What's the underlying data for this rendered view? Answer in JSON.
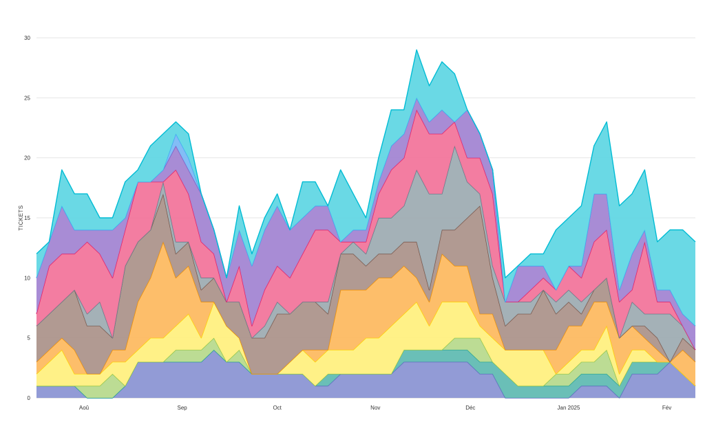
{
  "chart_data": {
    "type": "area",
    "stacked": true,
    "title": "",
    "xlabel": "",
    "ylabel": "TICKETS",
    "ylim": [
      0,
      30
    ],
    "yticks": [
      0,
      5,
      10,
      15,
      20,
      25,
      30
    ],
    "grid": true,
    "x_start": "2024-07-17",
    "x_end": "2025-02-10",
    "x_step_days": 4,
    "xticks": [
      {
        "label": "Aoû",
        "date": "2024-08-01"
      },
      {
        "label": "Sep",
        "date": "2024-09-01"
      },
      {
        "label": "Oct",
        "date": "2024-10-01"
      },
      {
        "label": "Nov",
        "date": "2024-11-01"
      },
      {
        "label": "Déc",
        "date": "2024-12-01"
      },
      {
        "label": "Jan 2025",
        "date": "2025-01-01"
      },
      {
        "label": "Fév",
        "date": "2025-02-01"
      }
    ],
    "series": [
      {
        "fill": "#8c96d4",
        "stroke": "#5c6bc0",
        "values": [
          1,
          1,
          1,
          1,
          0,
          0,
          0,
          1,
          3,
          3,
          3,
          3,
          3,
          3,
          4,
          3,
          3,
          2,
          2,
          2,
          2,
          2,
          1,
          1,
          2,
          2,
          2,
          2,
          2,
          3,
          3,
          3,
          3,
          3,
          3,
          2,
          2,
          0,
          0,
          0,
          0,
          0,
          0,
          1,
          1,
          1,
          0,
          2,
          2,
          2,
          3,
          2,
          1
        ]
      },
      {
        "fill": "#62bcb3",
        "stroke": "#1fa396",
        "values": [
          0,
          0,
          0,
          0,
          0,
          0,
          0,
          0,
          0,
          0,
          0,
          0,
          0,
          0,
          0,
          0,
          0,
          0,
          0,
          0,
          0,
          0,
          0,
          1,
          0,
          0,
          0,
          0,
          0,
          1,
          1,
          1,
          1,
          1,
          1,
          1,
          1,
          2,
          1,
          1,
          1,
          1,
          1,
          1,
          1,
          1,
          1,
          1,
          1,
          1,
          0,
          0,
          0
        ]
      },
      {
        "fill": "#b8da8e",
        "stroke": "#8bc34a",
        "values": [
          0,
          0,
          0,
          0,
          1,
          1,
          2,
          0,
          0,
          0,
          0,
          1,
          1,
          1,
          1,
          0,
          1,
          0,
          0,
          0,
          0,
          0,
          0,
          0,
          0,
          0,
          0,
          0,
          0,
          0,
          0,
          0,
          0,
          1,
          1,
          2,
          0,
          0,
          0,
          0,
          0,
          1,
          1,
          1,
          1,
          2,
          0,
          0,
          0,
          0,
          0,
          0,
          0
        ]
      },
      {
        "fill": "#fff081",
        "stroke": "#ffd600",
        "values": [
          1,
          2,
          3,
          1,
          1,
          1,
          1,
          2,
          1,
          2,
          2,
          2,
          3,
          1,
          3,
          3,
          1,
          0,
          0,
          0,
          1,
          2,
          2,
          2,
          2,
          2,
          3,
          3,
          4,
          3,
          4,
          2,
          4,
          3,
          3,
          1,
          2,
          2,
          3,
          3,
          3,
          0,
          1,
          1,
          1,
          2,
          1,
          1,
          1,
          0,
          0,
          0,
          0
        ]
      },
      {
        "fill": "#fdbb62",
        "stroke": "#f39200",
        "values": [
          1,
          1,
          1,
          2,
          0,
          0,
          1,
          1,
          4,
          5,
          8,
          4,
          4,
          3,
          0,
          0,
          0,
          0,
          0,
          0,
          0,
          0,
          1,
          0,
          5,
          5,
          4,
          5,
          4,
          4,
          2,
          2,
          4,
          3,
          3,
          1,
          2,
          0,
          0,
          0,
          0,
          2,
          3,
          2,
          4,
          2,
          3,
          2,
          1,
          1,
          0,
          2,
          2
        ]
      },
      {
        "fill": "#ad958c",
        "stroke": "#795548",
        "values": [
          3,
          3,
          3,
          5,
          4,
          4,
          1,
          7,
          5,
          4,
          4,
          2,
          2,
          1,
          2,
          2,
          3,
          3,
          3,
          5,
          4,
          4,
          4,
          3,
          3,
          3,
          2,
          2,
          2,
          2,
          3,
          1,
          2,
          3,
          4,
          9,
          3,
          2,
          3,
          3,
          5,
          3,
          2,
          1,
          1,
          2,
          0,
          0,
          1,
          1,
          0,
          1,
          1
        ]
      },
      {
        "fill": "#9fadb3",
        "stroke": "#607d8b",
        "values": [
          0,
          0,
          0,
          0,
          1,
          2,
          0,
          0,
          0,
          0,
          1,
          1,
          0,
          1,
          0,
          0,
          0,
          0,
          1,
          1,
          0,
          0,
          0,
          1,
          0,
          1,
          1,
          3,
          3,
          3,
          6,
          8,
          3,
          7,
          3,
          1,
          1,
          2,
          1,
          1,
          0,
          1,
          1,
          1,
          0,
          0,
          0,
          2,
          1,
          2,
          4,
          1,
          0
        ]
      },
      {
        "fill": "#f2769c",
        "stroke": "#e91e63",
        "values": [
          1,
          4,
          4,
          3,
          6,
          4,
          5,
          3,
          5,
          4,
          0,
          6,
          4,
          3,
          2,
          0,
          3,
          1,
          3,
          3,
          3,
          4,
          6,
          6,
          1,
          0,
          1,
          2,
          4,
          4,
          5,
          5,
          5,
          2,
          2,
          3,
          6,
          0,
          0,
          1,
          1,
          1,
          2,
          2,
          4,
          4,
          3,
          1,
          6,
          1,
          1,
          0,
          0
        ]
      },
      {
        "fill": "#a386d3",
        "stroke": "#7e57c2",
        "values": [
          3,
          2,
          4,
          2,
          1,
          2,
          4,
          1,
          0,
          0,
          1,
          2,
          2,
          4,
          2,
          2,
          3,
          5,
          5,
          5,
          4,
          3,
          2,
          2,
          0,
          1,
          1,
          1,
          2,
          2,
          1,
          1,
          2,
          0,
          4,
          2,
          2,
          0,
          3,
          2,
          1,
          0,
          0,
          1,
          4,
          3,
          1,
          3,
          1,
          1,
          1,
          1,
          2
        ]
      },
      {
        "fill": "#7cb9f5",
        "stroke": "#42a5f5",
        "values": [
          0,
          0,
          0,
          0,
          0,
          0,
          0,
          0,
          0,
          0,
          0,
          1,
          1,
          0,
          0,
          0,
          0,
          0,
          0,
          0,
          0,
          0,
          0,
          0,
          0,
          0,
          0,
          0,
          0,
          0,
          0,
          0,
          0,
          0,
          0,
          0,
          0,
          0,
          0,
          0,
          0,
          0,
          0,
          0,
          0,
          0,
          0,
          0,
          0,
          0,
          0,
          0,
          0
        ]
      },
      {
        "fill": "#62d7e4",
        "stroke": "#00bcd4",
        "values": [
          2,
          0,
          3,
          3,
          3,
          1,
          1,
          3,
          1,
          3,
          3,
          1,
          2,
          0,
          0,
          0,
          2,
          1,
          1,
          1,
          0,
          3,
          2,
          0,
          6,
          3,
          1,
          2,
          3,
          2,
          4,
          3,
          4,
          4,
          0,
          0,
          0,
          2,
          0,
          1,
          1,
          5,
          4,
          5,
          4,
          6,
          7,
          5,
          5,
          4,
          5,
          7,
          7
        ]
      }
    ]
  }
}
